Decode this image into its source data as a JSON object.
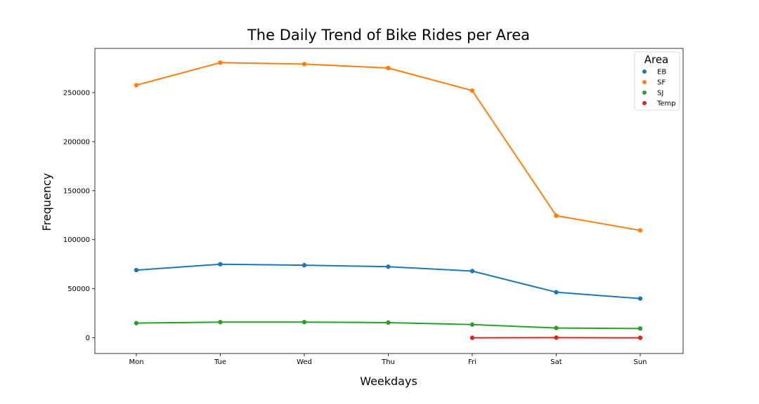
{
  "chart_data": {
    "type": "line",
    "title": "The Daily Trend of Bike Rides per Area",
    "xlabel": "Weekdays",
    "ylabel": "Frequency",
    "categories": [
      "Mon",
      "Tue",
      "Wed",
      "Thu",
      "Fri",
      "Sat",
      "Sun"
    ],
    "yticks": [
      0,
      50000,
      100000,
      150000,
      200000,
      250000
    ],
    "ylim": [
      -16000,
      295000
    ],
    "grid": false,
    "legend": {
      "title": "Area",
      "position": "top-right"
    },
    "series": [
      {
        "name": "EB",
        "color": "#1f77b4",
        "values": [
          69000,
          75000,
          74000,
          72500,
          68000,
          46500,
          40000
        ]
      },
      {
        "name": "SF",
        "color": "#ff7f0e",
        "values": [
          257500,
          280500,
          279000,
          275000,
          252000,
          124500,
          109500
        ]
      },
      {
        "name": "SJ",
        "color": "#2ca02c",
        "values": [
          15000,
          16000,
          16000,
          15500,
          13500,
          10000,
          9500
        ]
      },
      {
        "name": "Temp",
        "color": "#d62728",
        "values": [
          null,
          null,
          null,
          null,
          0,
          200,
          0
        ]
      }
    ]
  }
}
